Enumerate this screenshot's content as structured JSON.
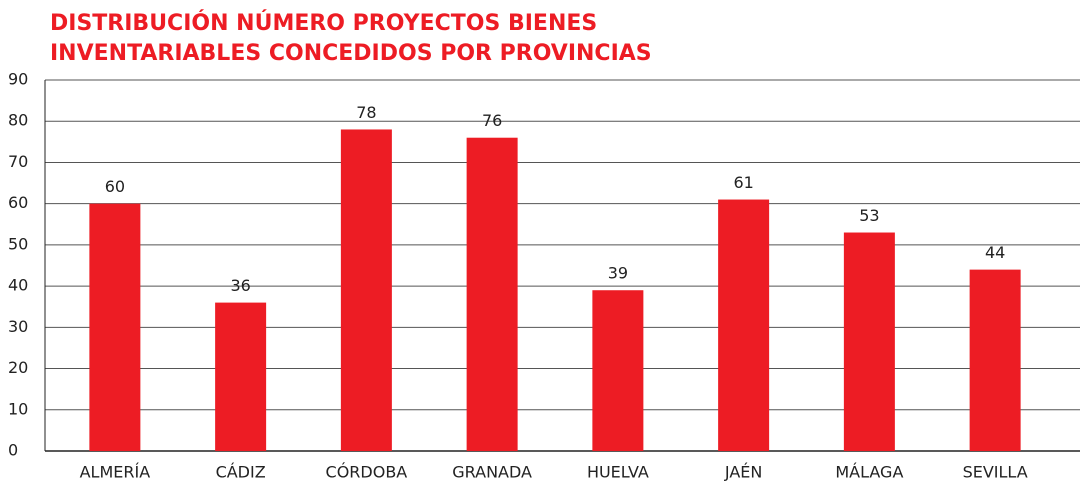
{
  "chart_data": {
    "type": "bar",
    "title": [
      "DISTRIBUCIÓN NÚMERO PROYECTOS BIENES",
      "INVENTARIABLES CONCEDIDOS POR PROVINCIAS"
    ],
    "categories": [
      "ALMERÍA",
      "CÁDIZ",
      "CÓRDOBA",
      "GRANADA",
      "HUELVA",
      "JAÉN",
      "MÁLAGA",
      "SEVILLA"
    ],
    "values": [
      60,
      36,
      78,
      76,
      39,
      61,
      53,
      44
    ],
    "color": "#ed1c24",
    "ylim": [
      0,
      90
    ],
    "yticks": [
      0,
      10,
      20,
      30,
      40,
      50,
      60,
      70,
      80,
      90
    ],
    "grid": true
  }
}
